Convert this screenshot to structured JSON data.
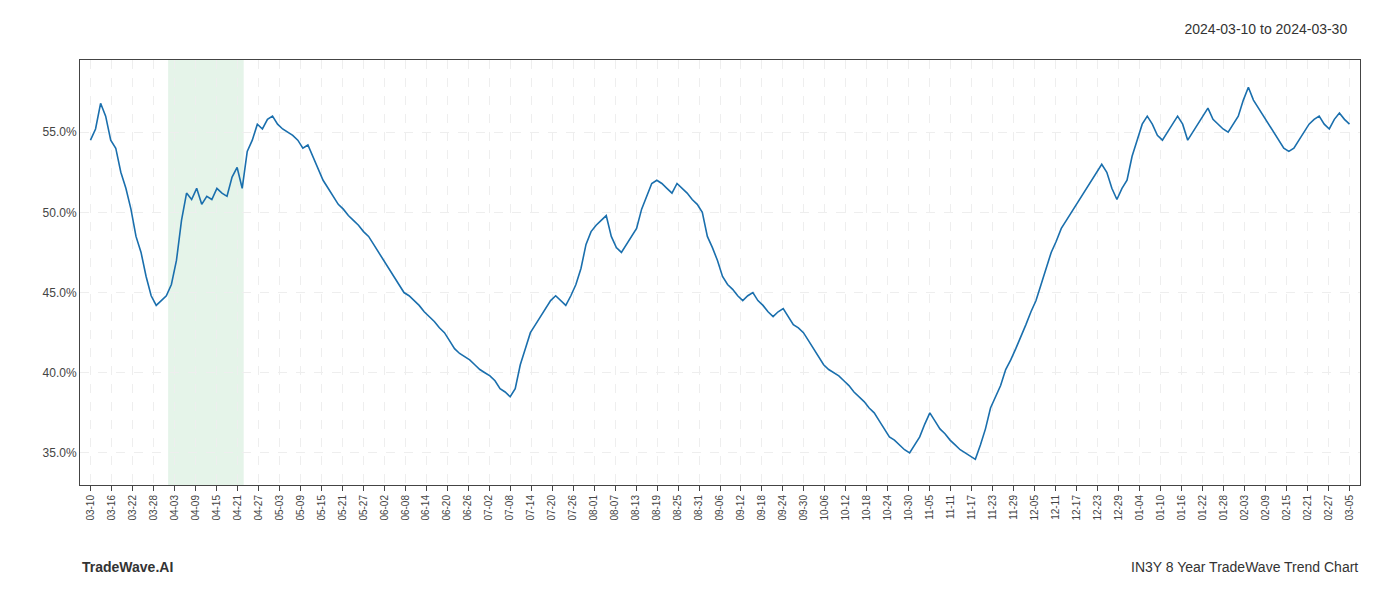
{
  "chart_data": {
    "type": "line",
    "title": "2024-03-10 to 2024-03-30",
    "annotations": [
      "TradeWave.AI",
      "IN3Y 8 Year TradeWave Trend Chart"
    ],
    "grid": true,
    "xlim": [
      -0.5,
      60.5
    ],
    "xticks": [
      {
        "value": 0,
        "label": "03-10"
      },
      {
        "value": 1,
        "label": "03-16"
      },
      {
        "value": 2,
        "label": "03-22"
      },
      {
        "value": 3,
        "label": "03-28"
      },
      {
        "value": 4,
        "label": "04-03"
      },
      {
        "value": 5,
        "label": "04-09"
      },
      {
        "value": 6,
        "label": "04-15"
      },
      {
        "value": 7,
        "label": "04-21"
      },
      {
        "value": 8,
        "label": "04-27"
      },
      {
        "value": 9,
        "label": "05-03"
      },
      {
        "value": 10,
        "label": "05-09"
      },
      {
        "value": 11,
        "label": "05-15"
      },
      {
        "value": 12,
        "label": "05-21"
      },
      {
        "value": 13,
        "label": "05-27"
      },
      {
        "value": 14,
        "label": "06-02"
      },
      {
        "value": 15,
        "label": "06-08"
      },
      {
        "value": 16,
        "label": "06-14"
      },
      {
        "value": 17,
        "label": "06-20"
      },
      {
        "value": 18,
        "label": "06-26"
      },
      {
        "value": 19,
        "label": "07-02"
      },
      {
        "value": 20,
        "label": "07-08"
      },
      {
        "value": 21,
        "label": "07-14"
      },
      {
        "value": 22,
        "label": "07-20"
      },
      {
        "value": 23,
        "label": "07-26"
      },
      {
        "value": 24,
        "label": "08-01"
      },
      {
        "value": 25,
        "label": "08-07"
      },
      {
        "value": 26,
        "label": "08-13"
      },
      {
        "value": 27,
        "label": "08-19"
      },
      {
        "value": 28,
        "label": "08-25"
      },
      {
        "value": 29,
        "label": "08-31"
      },
      {
        "value": 30,
        "label": "09-06"
      },
      {
        "value": 31,
        "label": "09-12"
      },
      {
        "value": 32,
        "label": "09-18"
      },
      {
        "value": 33,
        "label": "09-24"
      },
      {
        "value": 34,
        "label": "09-30"
      },
      {
        "value": 35,
        "label": "10-06"
      },
      {
        "value": 36,
        "label": "10-12"
      },
      {
        "value": 37,
        "label": "10-18"
      },
      {
        "value": 38,
        "label": "10-24"
      },
      {
        "value": 39,
        "label": "10-30"
      },
      {
        "value": 40,
        "label": "11-05"
      },
      {
        "value": 41,
        "label": "11-11"
      },
      {
        "value": 42,
        "label": "11-17"
      },
      {
        "value": 43,
        "label": "11-23"
      },
      {
        "value": 44,
        "label": "11-29"
      },
      {
        "value": 45,
        "label": "12-05"
      },
      {
        "value": 46,
        "label": "12-11"
      },
      {
        "value": 47,
        "label": "12-17"
      },
      {
        "value": 48,
        "label": "12-23"
      },
      {
        "value": 49,
        "label": "12-29"
      },
      {
        "value": 50,
        "label": "01-04"
      },
      {
        "value": 51,
        "label": "01-10"
      },
      {
        "value": 52,
        "label": "01-16"
      },
      {
        "value": 53,
        "label": "01-22"
      },
      {
        "value": 54,
        "label": "01-28"
      },
      {
        "value": 55,
        "label": "02-03"
      },
      {
        "value": 56,
        "label": "02-09"
      },
      {
        "value": 57,
        "label": "02-15"
      },
      {
        "value": 58,
        "label": "02-21"
      },
      {
        "value": 59,
        "label": "02-27"
      },
      {
        "value": 60,
        "label": "03-05"
      }
    ],
    "ylim": [
      33.0,
      59.5
    ],
    "yticks": [
      {
        "value": 35.0,
        "label": "35.0%"
      },
      {
        "value": 40.0,
        "label": "40.0%"
      },
      {
        "value": 45.0,
        "label": "45.0%"
      },
      {
        "value": 50.0,
        "label": "50.0%"
      },
      {
        "value": 55.0,
        "label": "55.0%"
      }
    ],
    "shade": {
      "from": 4,
      "to": 7,
      "color": "#d4edda"
    },
    "color": "#1a6fad",
    "values": [
      54.5,
      55.2,
      56.8,
      56.0,
      54.5,
      54.0,
      52.5,
      51.5,
      50.2,
      48.5,
      47.5,
      46.0,
      44.8,
      44.2,
      44.5,
      44.8,
      45.5,
      47.0,
      49.5,
      51.2,
      50.8,
      51.5,
      50.5,
      51.0,
      50.8,
      51.5,
      51.2,
      51.0,
      52.2,
      52.8,
      51.5,
      53.8,
      54.5,
      55.5,
      55.2,
      55.8,
      56.0,
      55.5,
      55.2,
      55.0,
      54.8,
      54.5,
      54.0,
      54.2,
      53.5,
      52.8,
      52.0,
      51.5,
      51.0,
      50.5,
      50.2,
      49.8,
      49.5,
      49.2,
      48.8,
      48.5,
      48.0,
      47.5,
      47.0,
      46.5,
      46.0,
      45.5,
      45.0,
      44.8,
      44.5,
      44.2,
      43.8,
      43.5,
      43.2,
      42.8,
      42.5,
      42.0,
      41.5,
      41.2,
      41.0,
      40.8,
      40.5,
      40.2,
      40.0,
      39.8,
      39.5,
      39.0,
      38.8,
      38.5,
      39.0,
      40.5,
      41.5,
      42.5,
      43.0,
      43.5,
      44.0,
      44.5,
      44.8,
      44.5,
      44.2,
      44.8,
      45.5,
      46.5,
      48.0,
      48.8,
      49.2,
      49.5,
      49.8,
      48.5,
      47.8,
      47.5,
      48.0,
      48.5,
      49.0,
      50.2,
      51.0,
      51.8,
      52.0,
      51.8,
      51.5,
      51.2,
      51.8,
      51.5,
      51.2,
      50.8,
      50.5,
      50.0,
      48.5,
      47.8,
      47.0,
      46.0,
      45.5,
      45.2,
      44.8,
      44.5,
      44.8,
      45.0,
      44.5,
      44.2,
      43.8,
      43.5,
      43.8,
      44.0,
      43.5,
      43.0,
      42.8,
      42.5,
      42.0,
      41.5,
      41.0,
      40.5,
      40.2,
      40.0,
      39.8,
      39.5,
      39.2,
      38.8,
      38.5,
      38.2,
      37.8,
      37.5,
      37.0,
      36.5,
      36.0,
      35.8,
      35.5,
      35.2,
      35.0,
      35.5,
      36.0,
      36.8,
      37.5,
      37.0,
      36.5,
      36.2,
      35.8,
      35.5,
      35.2,
      35.0,
      34.8,
      34.6,
      35.5,
      36.5,
      37.8,
      38.5,
      39.2,
      40.2,
      40.8,
      41.5,
      42.2,
      43.0,
      43.8,
      44.5,
      45.5,
      46.5,
      47.5,
      48.2,
      49.0,
      49.5,
      50.0,
      50.5,
      51.0,
      51.5,
      52.0,
      52.5,
      53.0,
      52.5,
      51.5,
      50.8,
      51.5,
      52.0,
      53.5,
      54.5,
      55.5,
      56.0,
      55.5,
      54.8,
      54.5,
      55.0,
      55.5,
      56.0,
      55.5,
      54.5,
      55.0,
      55.5,
      56.0,
      56.5,
      55.8,
      55.5,
      55.2,
      55.0,
      55.5,
      56.0,
      57.0,
      57.8,
      57.0,
      56.5,
      56.0,
      55.5,
      55.0,
      54.5,
      54.0,
      53.8,
      54.0,
      54.5,
      55.0,
      55.5,
      55.8,
      56.0,
      55.5,
      55.2,
      55.8,
      56.2,
      55.8,
      55.5
    ]
  }
}
